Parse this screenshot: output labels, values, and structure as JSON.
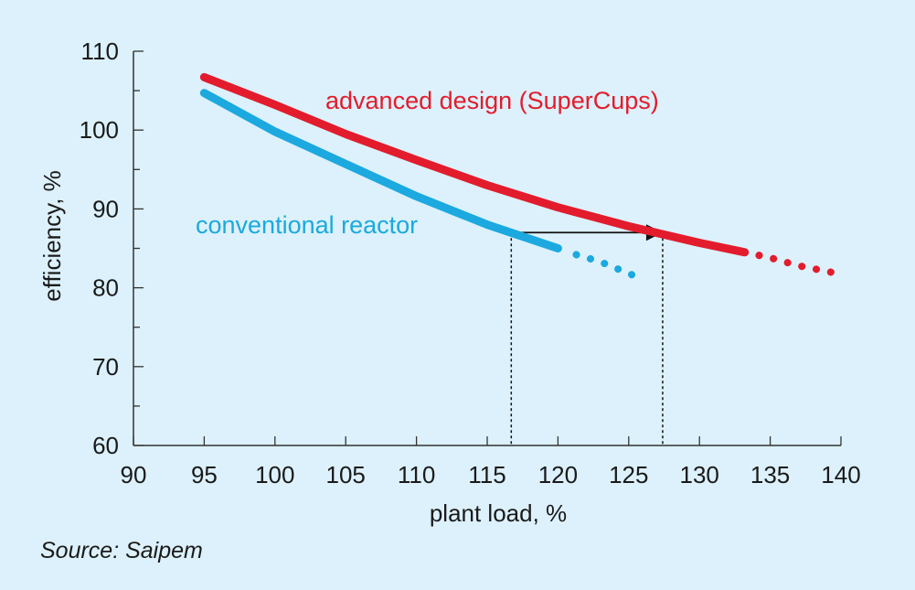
{
  "chart_data": {
    "type": "line",
    "xlabel": "plant load, %",
    "ylabel": "efficiency, %",
    "xlim": [
      90,
      140
    ],
    "ylim": [
      60,
      110
    ],
    "x_ticks": [
      90,
      95,
      100,
      105,
      110,
      115,
      120,
      125,
      130,
      135,
      140
    ],
    "y_ticks": [
      60,
      70,
      80,
      90,
      100,
      110
    ],
    "grid": false,
    "series": [
      {
        "name": "advanced design (SuperCups)",
        "color": "#e31c2d",
        "solid": [
          [
            95,
            106.7
          ],
          [
            100,
            103.2
          ],
          [
            105,
            99.5
          ],
          [
            110,
            96.2
          ],
          [
            115,
            93.0
          ],
          [
            120,
            90.2
          ],
          [
            125,
            87.8
          ],
          [
            130,
            85.7
          ],
          [
            133.2,
            84.5
          ]
        ],
        "dotted": [
          [
            133.2,
            84.5
          ],
          [
            135,
            83.8
          ],
          [
            137,
            82.8
          ],
          [
            139.5,
            81.9
          ]
        ]
      },
      {
        "name": "conventional reactor",
        "color": "#1ba9df",
        "solid": [
          [
            95,
            104.7
          ],
          [
            100,
            99.8
          ],
          [
            105,
            95.7
          ],
          [
            110,
            91.6
          ],
          [
            115,
            88.0
          ],
          [
            117,
            86.8
          ],
          [
            120,
            85.0
          ]
        ],
        "dotted": [
          [
            121.3,
            84.2
          ],
          [
            123,
            83.3
          ],
          [
            125.3,
            81.6
          ]
        ]
      }
    ],
    "annotation": {
      "arrow_from": [
        116.7,
        87.0
      ],
      "arrow_to": [
        127.4,
        87.0
      ],
      "drop_lines_x": [
        116.7,
        127.4
      ]
    },
    "source": "Source: Saipem"
  }
}
